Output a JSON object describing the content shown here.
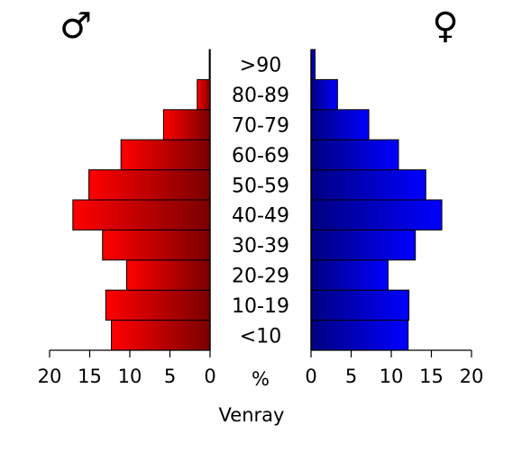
{
  "chart_data": {
    "type": "bar",
    "subtype": "population-pyramid",
    "title": "Venray",
    "unit_label": "%",
    "male_symbol": "♂",
    "female_symbol": "♀",
    "categories": [
      "<10",
      "10-19",
      "20-29",
      "30-39",
      "40-49",
      "50-59",
      "60-69",
      "70-79",
      "80-89",
      ">90"
    ],
    "series": [
      {
        "name": "♂",
        "side": "left",
        "color": "#ff0000",
        "values": [
          12.3,
          13.0,
          10.4,
          13.4,
          17.1,
          15.1,
          11.1,
          5.8,
          1.6,
          0.1
        ]
      },
      {
        "name": "♀",
        "side": "right",
        "color": "#0000ff",
        "values": [
          12.1,
          12.2,
          9.6,
          13.0,
          16.3,
          14.3,
          10.9,
          7.2,
          3.3,
          0.5
        ]
      }
    ],
    "xlim": [
      0,
      20
    ],
    "ticks": [
      0,
      5,
      10,
      15,
      20
    ],
    "grid": false,
    "legend": "none"
  }
}
